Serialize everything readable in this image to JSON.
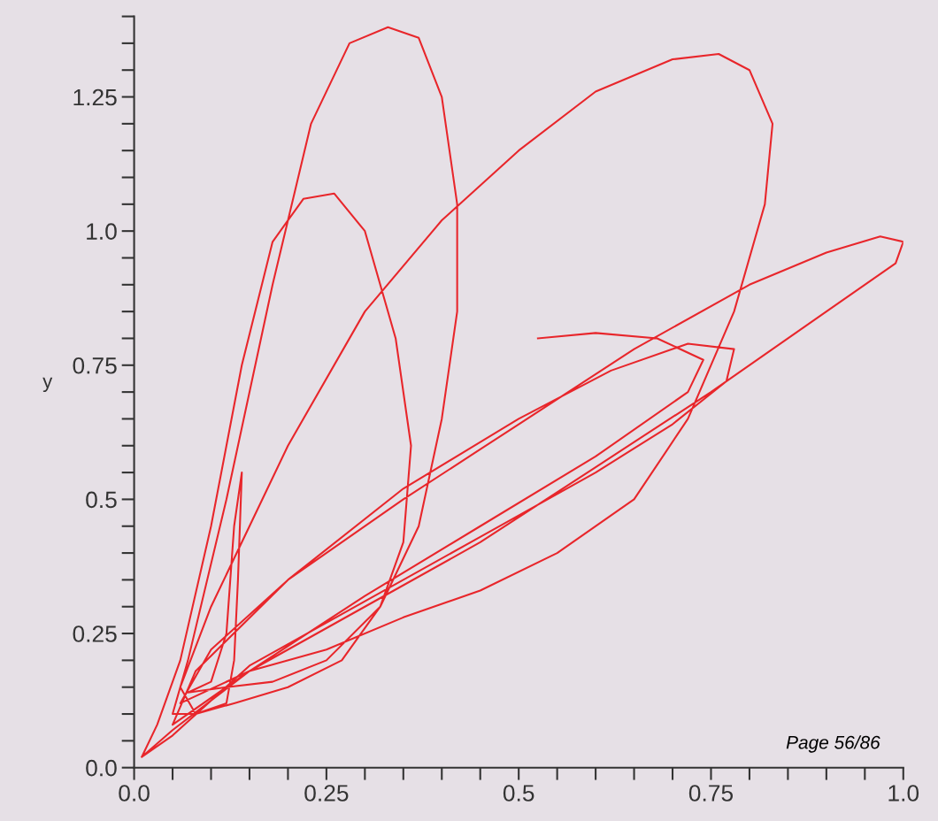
{
  "chart_data": {
    "type": "line",
    "ylabel": "y",
    "annotations": [
      "Page 56/86"
    ],
    "xlim": [
      0,
      1.0
    ],
    "ylim": [
      0,
      1.4
    ],
    "xticks": [
      {
        "value": 0,
        "label": "0.0"
      },
      {
        "value": 0.05,
        "label": null
      },
      {
        "value": 0.1,
        "label": null
      },
      {
        "value": 0.15,
        "label": null
      },
      {
        "value": 0.2,
        "label": null
      },
      0.25,
      {
        "value": 0.3,
        "label": null
      },
      {
        "value": 0.35,
        "label": null
      },
      {
        "value": 0.4,
        "label": null
      },
      {
        "value": 0.45,
        "label": null
      },
      0.5,
      {
        "value": 0.55,
        "label": null
      },
      {
        "value": 0.6,
        "label": null
      },
      {
        "value": 0.65,
        "label": null
      },
      {
        "value": 0.7,
        "label": null
      },
      0.75,
      {
        "value": 0.8,
        "label": null
      },
      {
        "value": 0.85,
        "label": null
      },
      {
        "value": 0.9,
        "label": null
      },
      {
        "value": 0.95,
        "label": null
      },
      {
        "value": 1.0,
        "label": "1.0"
      }
    ],
    "yticks": [
      {
        "value": 0,
        "label": "0.0"
      },
      {
        "value": 0.05,
        "label": null
      },
      {
        "value": 0.1,
        "label": null
      },
      {
        "value": 0.15,
        "label": null
      },
      {
        "value": 0.2,
        "label": null
      },
      0.25,
      {
        "value": 0.3,
        "label": null
      },
      {
        "value": 0.35,
        "label": null
      },
      {
        "value": 0.4,
        "label": null
      },
      {
        "value": 0.45,
        "label": null
      },
      0.5,
      {
        "value": 0.55,
        "label": null
      },
      {
        "value": 0.6,
        "label": null
      },
      {
        "value": 0.65,
        "label": null
      },
      {
        "value": 0.7,
        "label": null
      },
      0.75,
      {
        "value": 0.8,
        "label": null
      },
      {
        "value": 0.85,
        "label": null
      },
      {
        "value": 0.9,
        "label": null
      },
      {
        "value": 0.95,
        "label": null
      },
      {
        "value": 1.0,
        "label": "1.0"
      },
      {
        "value": 1.05,
        "label": null
      },
      {
        "value": 1.1,
        "label": null
      },
      {
        "value": 1.15,
        "label": null
      },
      {
        "value": 1.2,
        "label": null
      },
      1.25,
      {
        "value": 1.3,
        "label": null
      },
      {
        "value": 1.35,
        "label": null
      },
      {
        "value": 1.4,
        "label": null
      }
    ],
    "grid": false,
    "marker": "none",
    "line_style": "solid",
    "series": [
      {
        "color": "#e8262b",
        "x": [
          0.525,
          0.6,
          0.68,
          0.74,
          0.72,
          0.6,
          0.45,
          0.3,
          0.15,
          0.05,
          0.01,
          0.03,
          0.06,
          0.1,
          0.14,
          0.18,
          0.22,
          0.26,
          0.3,
          0.34,
          0.36,
          0.35,
          0.32,
          0.27,
          0.2,
          0.13,
          0.08,
          0.05,
          0.07,
          0.12,
          0.18,
          0.23,
          0.28,
          0.33,
          0.37,
          0.4,
          0.42,
          0.42,
          0.4,
          0.37,
          0.32,
          0.25,
          0.18,
          0.12,
          0.07,
          0.1,
          0.12,
          0.13,
          0.14,
          0.135,
          0.13,
          0.12,
          0.08,
          0.06,
          0.1,
          0.2,
          0.3,
          0.4,
          0.5,
          0.6,
          0.7,
          0.76,
          0.8,
          0.83,
          0.82,
          0.78,
          0.72,
          0.65,
          0.55,
          0.45,
          0.35,
          0.25,
          0.15,
          0.06,
          0.1,
          0.2,
          0.35,
          0.5,
          0.65,
          0.8,
          0.9,
          0.97,
          1.0,
          0.99,
          0.9,
          0.75,
          0.6,
          0.45,
          0.3,
          0.15,
          0.05,
          0.08,
          0.2,
          0.35,
          0.5,
          0.62,
          0.72,
          0.78,
          0.77,
          0.7,
          0.6,
          0.45,
          0.3,
          0.15,
          0.05,
          0.01
        ],
        "values": [
          0.8,
          0.81,
          0.8,
          0.76,
          0.7,
          0.58,
          0.45,
          0.32,
          0.18,
          0.07,
          0.02,
          0.08,
          0.2,
          0.45,
          0.75,
          0.98,
          1.06,
          1.07,
          1.0,
          0.8,
          0.6,
          0.42,
          0.3,
          0.2,
          0.15,
          0.12,
          0.1,
          0.1,
          0.2,
          0.5,
          0.9,
          1.2,
          1.35,
          1.38,
          1.36,
          1.25,
          1.05,
          0.85,
          0.65,
          0.45,
          0.3,
          0.2,
          0.16,
          0.15,
          0.14,
          0.16,
          0.25,
          0.45,
          0.55,
          0.35,
          0.2,
          0.12,
          0.1,
          0.15,
          0.3,
          0.6,
          0.85,
          1.02,
          1.15,
          1.26,
          1.32,
          1.33,
          1.3,
          1.2,
          1.05,
          0.85,
          0.65,
          0.5,
          0.4,
          0.33,
          0.28,
          0.22,
          0.18,
          0.12,
          0.22,
          0.35,
          0.5,
          0.64,
          0.78,
          0.9,
          0.96,
          0.99,
          0.98,
          0.94,
          0.85,
          0.7,
          0.56,
          0.42,
          0.3,
          0.18,
          0.08,
          0.18,
          0.35,
          0.52,
          0.65,
          0.74,
          0.79,
          0.78,
          0.72,
          0.64,
          0.55,
          0.43,
          0.31,
          0.19,
          0.06,
          0.02
        ]
      }
    ]
  }
}
